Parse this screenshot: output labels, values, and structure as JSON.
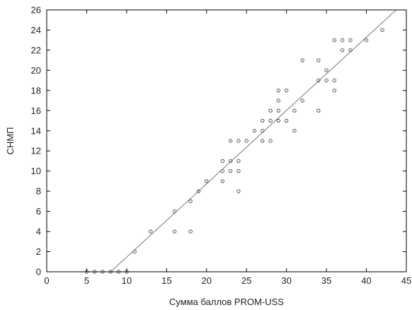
{
  "chart_data": {
    "type": "scatter",
    "title": "",
    "xlabel": "Сумма баллов PROM-USS",
    "ylabel": "СНМП",
    "xlim": [
      0,
      45
    ],
    "ylim": [
      0,
      26
    ],
    "x_ticks": [
      0,
      5,
      10,
      15,
      20,
      25,
      30,
      35,
      40,
      45
    ],
    "y_ticks": [
      0,
      2,
      4,
      6,
      8,
      10,
      12,
      14,
      16,
      18,
      20,
      22,
      24,
      26
    ],
    "grid": false,
    "legend": "none",
    "colors": {
      "point": "#555555",
      "line": "#777777",
      "axis": "#000000"
    },
    "series": [
      {
        "points": [
          [
            5,
            0
          ],
          [
            6,
            0
          ],
          [
            7,
            0
          ],
          [
            8,
            0
          ],
          [
            9,
            0
          ],
          [
            10,
            0
          ],
          [
            11,
            2
          ],
          [
            13,
            4
          ],
          [
            16,
            4
          ],
          [
            16,
            6
          ],
          [
            18,
            4
          ],
          [
            18,
            7
          ],
          [
            19,
            8
          ],
          [
            20,
            9
          ],
          [
            22,
            9
          ],
          [
            22,
            10
          ],
          [
            22,
            11
          ],
          [
            23,
            10
          ],
          [
            23,
            11
          ],
          [
            23,
            13
          ],
          [
            24,
            8
          ],
          [
            24,
            10
          ],
          [
            24,
            11
          ],
          [
            24,
            13
          ],
          [
            25,
            13
          ],
          [
            26,
            14
          ],
          [
            27,
            13
          ],
          [
            27,
            14
          ],
          [
            27,
            15
          ],
          [
            28,
            13
          ],
          [
            28,
            15
          ],
          [
            28,
            16
          ],
          [
            29,
            15
          ],
          [
            29,
            16
          ],
          [
            29,
            17
          ],
          [
            29,
            18
          ],
          [
            30,
            15
          ],
          [
            30,
            18
          ],
          [
            31,
            14
          ],
          [
            31,
            16
          ],
          [
            32,
            17
          ],
          [
            32,
            21
          ],
          [
            34,
            16
          ],
          [
            34,
            19
          ],
          [
            34,
            21
          ],
          [
            35,
            19
          ],
          [
            35,
            20
          ],
          [
            36,
            18
          ],
          [
            36,
            19
          ],
          [
            36,
            23
          ],
          [
            37,
            22
          ],
          [
            37,
            23
          ],
          [
            38,
            22
          ],
          [
            38,
            23
          ],
          [
            40,
            23
          ],
          [
            42,
            24
          ]
        ]
      }
    ],
    "trendline": {
      "x": [
        8,
        44
      ],
      "y": [
        0,
        26.2
      ]
    }
  }
}
